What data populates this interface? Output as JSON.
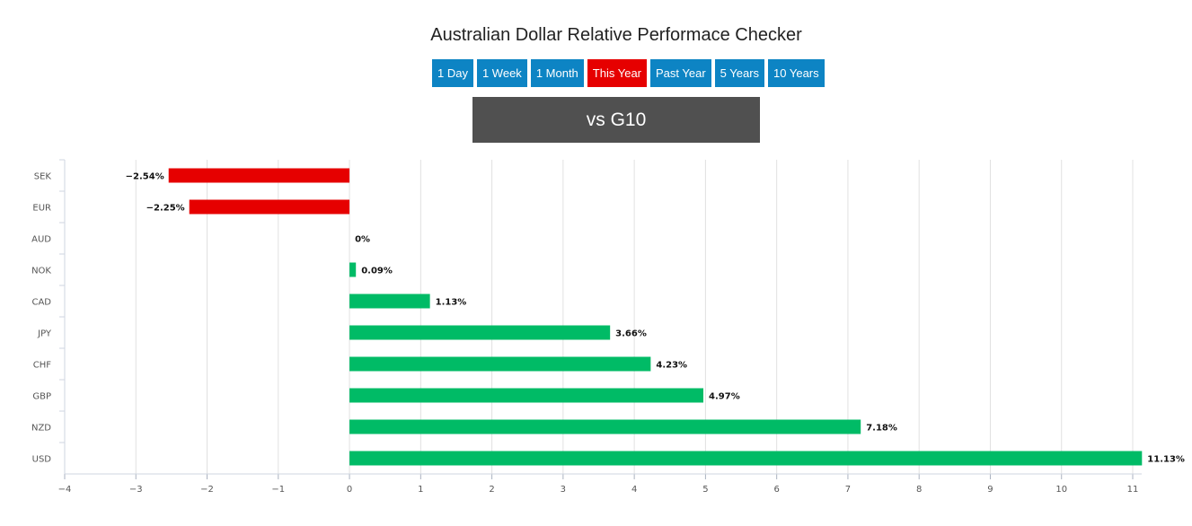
{
  "page": {
    "title": "Australian Dollar Relative Performace Checker",
    "banner": "vs G10"
  },
  "range_buttons": [
    {
      "label": "1 Day",
      "active": false
    },
    {
      "label": "1 Week",
      "active": false
    },
    {
      "label": "1 Month",
      "active": false
    },
    {
      "label": "This Year",
      "active": true
    },
    {
      "label": "Past Year",
      "active": false
    },
    {
      "label": "5 Years",
      "active": false
    },
    {
      "label": "10 Years",
      "active": false
    }
  ],
  "colors": {
    "button": "#0d84c4",
    "button_active": "#e60000",
    "banner": "#505050",
    "positive": "#00bb66",
    "negative": "#e60000",
    "grid": "#e0e0e0"
  },
  "chart_data": {
    "type": "bar",
    "orientation": "horizontal",
    "categories": [
      "SEK",
      "EUR",
      "AUD",
      "NOK",
      "CAD",
      "JPY",
      "CHF",
      "GBP",
      "NZD",
      "USD"
    ],
    "values": [
      -2.54,
      -2.25,
      0,
      0.09,
      1.13,
      3.66,
      4.23,
      4.97,
      7.18,
      11.13
    ],
    "data_labels": [
      "−2.54%",
      "−2.25%",
      "0%",
      "0.09%",
      "1.13%",
      "3.66%",
      "4.23%",
      "4.97%",
      "7.18%",
      "11.13%"
    ],
    "xlim": [
      -4,
      11
    ],
    "x_ticks": [
      -4,
      -3,
      -2,
      -1,
      0,
      1,
      2,
      3,
      4,
      5,
      6,
      7,
      8,
      9,
      10,
      11
    ],
    "x_tick_labels": [
      "−4",
      "−3",
      "−2",
      "−1",
      "0",
      "1",
      "2",
      "3",
      "4",
      "5",
      "6",
      "7",
      "8",
      "9",
      "10",
      "11"
    ],
    "grid": true,
    "legend": "none"
  }
}
